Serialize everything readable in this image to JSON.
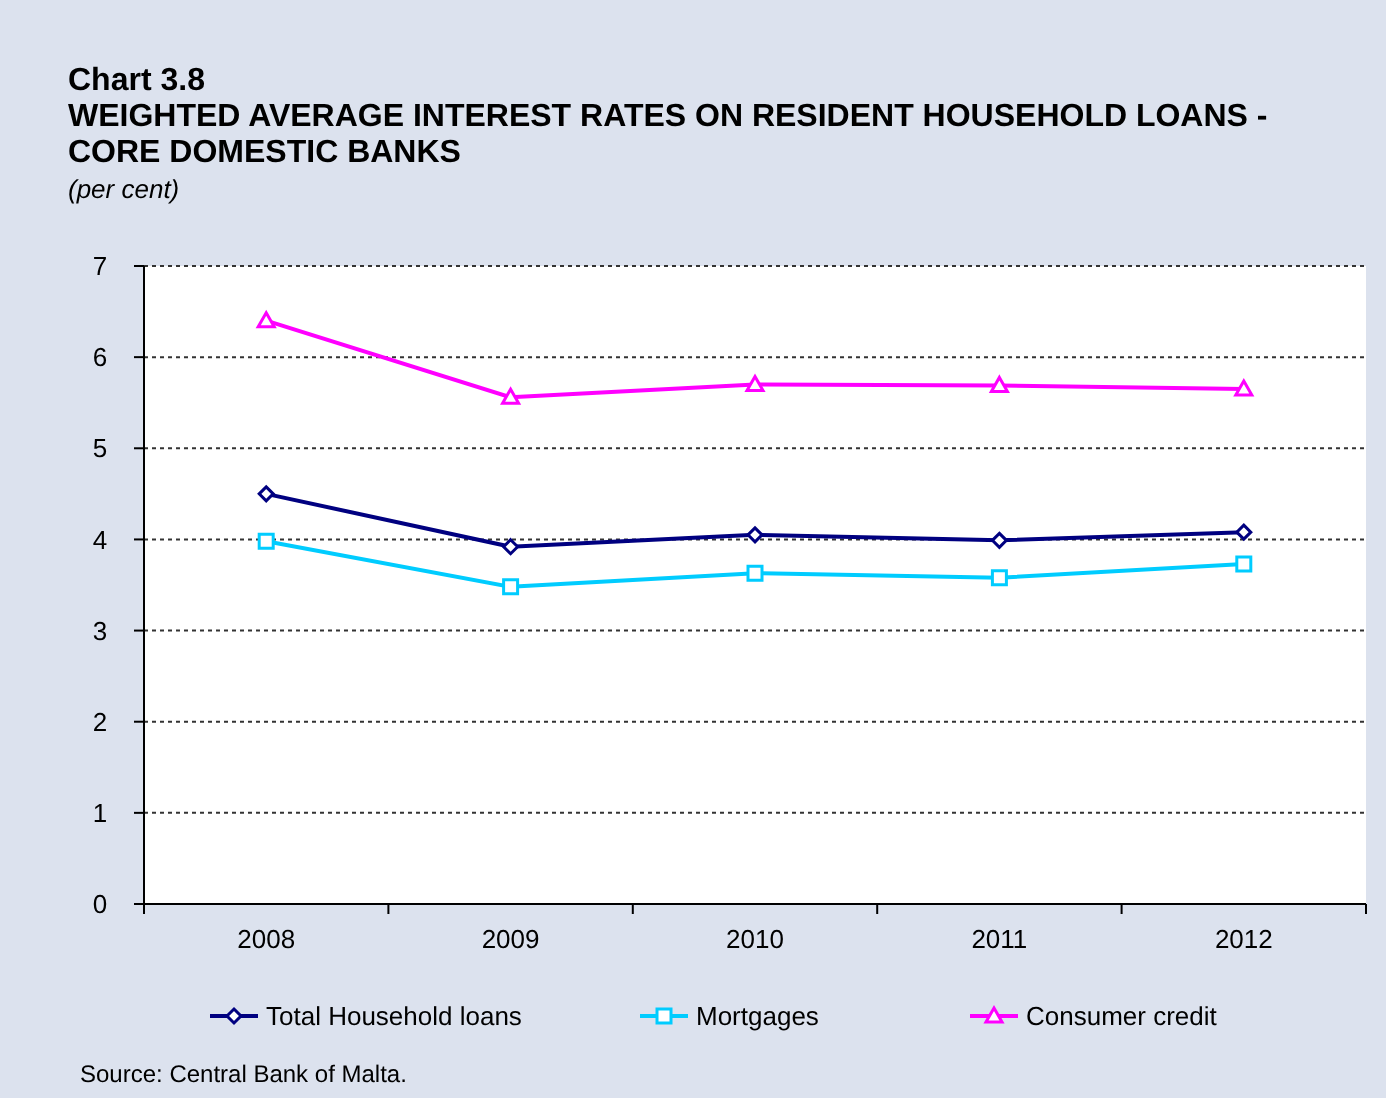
{
  "chart_data": {
    "type": "line",
    "title": "Chart 3.8",
    "subtitle": "WEIGHTED AVERAGE INTEREST RATES ON RESIDENT HOUSEHOLD LOANS - CORE DOMESTIC BANKS",
    "ylabel": "(per cent)",
    "categories": [
      "2008",
      "2009",
      "2010",
      "2011",
      "2012"
    ],
    "series": [
      {
        "name": "Total Household loans",
        "color": "#000080",
        "marker": "diamond",
        "values": [
          4.5,
          3.92,
          4.05,
          3.99,
          4.08
        ]
      },
      {
        "name": "Mortgages",
        "color": "#00ccff",
        "marker": "square",
        "values": [
          3.98,
          3.48,
          3.63,
          3.58,
          3.73
        ]
      },
      {
        "name": "Consumer credit",
        "color": "#ff00ff",
        "marker": "triangle",
        "values": [
          6.4,
          5.56,
          5.7,
          5.69,
          5.65
        ]
      }
    ],
    "ylim": [
      0,
      7
    ],
    "yticks": [
      0,
      1,
      2,
      3,
      4,
      5,
      6,
      7
    ],
    "grid": "y",
    "legend": "bottom",
    "line_style": "solid",
    "annotations": [
      "Source: Central Bank of Malta."
    ]
  }
}
